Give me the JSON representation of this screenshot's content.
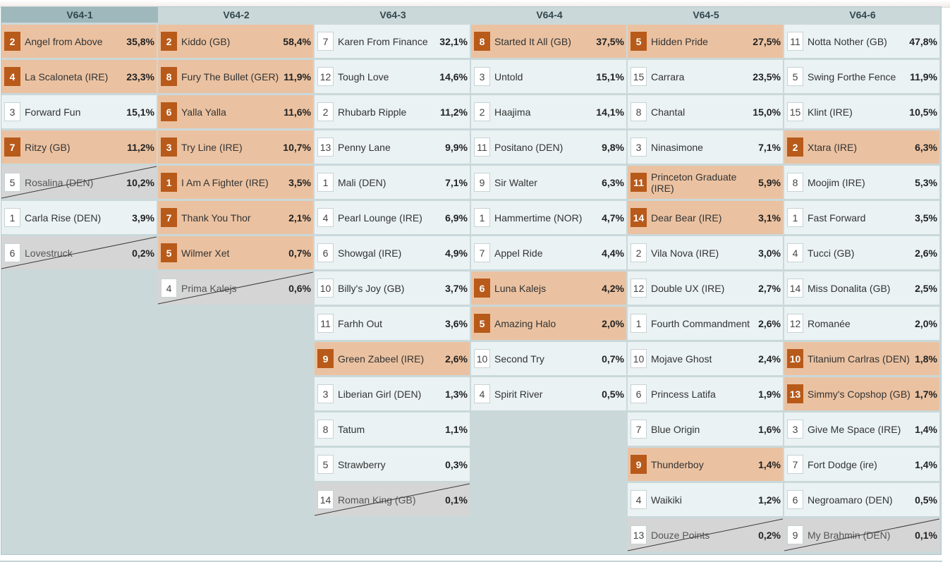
{
  "columns": [
    {
      "title": "V64-1",
      "rows": [
        {
          "num": "2",
          "name": "Angel from Above",
          "pct": "35,8%",
          "kind": "c"
        },
        {
          "num": "4",
          "name": "La Scaloneta (IRE)",
          "pct": "23,3%",
          "kind": "c"
        },
        {
          "num": "3",
          "name": "Forward Fun",
          "pct": "15,1%",
          "kind": "w"
        },
        {
          "num": "7",
          "name": "Ritzy (GB)",
          "pct": "11,2%",
          "kind": "c"
        },
        {
          "num": "5",
          "name": "Rosalina (DEN)",
          "pct": "10,2%",
          "kind": "s"
        },
        {
          "num": "1",
          "name": "Carla Rise (DEN)",
          "pct": "3,9%",
          "kind": "w"
        },
        {
          "num": "6",
          "name": "Lovestruck",
          "pct": "0,2%",
          "kind": "s"
        }
      ]
    },
    {
      "title": "V64-2",
      "rows": [
        {
          "num": "2",
          "name": "Kiddo (GB)",
          "pct": "58,4%",
          "kind": "c"
        },
        {
          "num": "8",
          "name": "Fury The Bullet (GER)",
          "pct": "11,9%",
          "kind": "c"
        },
        {
          "num": "6",
          "name": "Yalla Yalla",
          "pct": "11,6%",
          "kind": "c"
        },
        {
          "num": "3",
          "name": "Try Line (IRE)",
          "pct": "10,7%",
          "kind": "c"
        },
        {
          "num": "1",
          "name": "I Am A Fighter (IRE)",
          "pct": "3,5%",
          "kind": "c"
        },
        {
          "num": "7",
          "name": "Thank You Thor",
          "pct": "2,1%",
          "kind": "c"
        },
        {
          "num": "5",
          "name": "Wilmer Xet",
          "pct": "0,7%",
          "kind": "c"
        },
        {
          "num": "4",
          "name": "Prima Kalejs",
          "pct": "0,6%",
          "kind": "s"
        }
      ]
    },
    {
      "title": "V64-3",
      "rows": [
        {
          "num": "7",
          "name": "Karen From Finance",
          "pct": "32,1%",
          "kind": "w"
        },
        {
          "num": "12",
          "name": "Tough Love",
          "pct": "14,6%",
          "kind": "w"
        },
        {
          "num": "2",
          "name": "Rhubarb Ripple",
          "pct": "11,2%",
          "kind": "w"
        },
        {
          "num": "13",
          "name": "Penny Lane",
          "pct": "9,9%",
          "kind": "w"
        },
        {
          "num": "1",
          "name": "Mali (DEN)",
          "pct": "7,1%",
          "kind": "w"
        },
        {
          "num": "4",
          "name": "Pearl Lounge (IRE)",
          "pct": "6,9%",
          "kind": "w"
        },
        {
          "num": "6",
          "name": "Showgal (IRE)",
          "pct": "4,9%",
          "kind": "w"
        },
        {
          "num": "10",
          "name": "Billy's Joy (GB)",
          "pct": "3,7%",
          "kind": "w"
        },
        {
          "num": "11",
          "name": "Farhh Out",
          "pct": "3,6%",
          "kind": "w"
        },
        {
          "num": "9",
          "name": "Green Zabeel (IRE)",
          "pct": "2,6%",
          "kind": "c"
        },
        {
          "num": "3",
          "name": "Liberian Girl (DEN)",
          "pct": "1,3%",
          "kind": "w"
        },
        {
          "num": "8",
          "name": "Tatum",
          "pct": "1,1%",
          "kind": "w"
        },
        {
          "num": "5",
          "name": "Strawberry",
          "pct": "0,3%",
          "kind": "w"
        },
        {
          "num": "14",
          "name": "Roman King (GB)",
          "pct": "0,1%",
          "kind": "s"
        }
      ]
    },
    {
      "title": "V64-4",
      "rows": [
        {
          "num": "8",
          "name": "Started It All (GB)",
          "pct": "37,5%",
          "kind": "c"
        },
        {
          "num": "3",
          "name": "Untold",
          "pct": "15,1%",
          "kind": "w"
        },
        {
          "num": "2",
          "name": "Haajima",
          "pct": "14,1%",
          "kind": "w"
        },
        {
          "num": "11",
          "name": "Positano (DEN)",
          "pct": "9,8%",
          "kind": "w"
        },
        {
          "num": "9",
          "name": "Sir Walter",
          "pct": "6,3%",
          "kind": "w"
        },
        {
          "num": "1",
          "name": "Hammertime (NOR)",
          "pct": "4,7%",
          "kind": "w"
        },
        {
          "num": "7",
          "name": "Appel Ride",
          "pct": "4,4%",
          "kind": "w"
        },
        {
          "num": "6",
          "name": "Luna Kalejs",
          "pct": "4,2%",
          "kind": "c"
        },
        {
          "num": "5",
          "name": "Amazing Halo",
          "pct": "2,0%",
          "kind": "c"
        },
        {
          "num": "10",
          "name": "Second Try",
          "pct": "0,7%",
          "kind": "w"
        },
        {
          "num": "4",
          "name": "Spirit River",
          "pct": "0,5%",
          "kind": "w"
        }
      ]
    },
    {
      "title": "V64-5",
      "rows": [
        {
          "num": "5",
          "name": "Hidden Pride",
          "pct": "27,5%",
          "kind": "c"
        },
        {
          "num": "15",
          "name": "Carrara",
          "pct": "23,5%",
          "kind": "w"
        },
        {
          "num": "8",
          "name": "Chantal",
          "pct": "15,0%",
          "kind": "w"
        },
        {
          "num": "3",
          "name": "Ninasimone",
          "pct": "7,1%",
          "kind": "w"
        },
        {
          "num": "11",
          "name": "Princeton Graduate (IRE)",
          "pct": "5,9%",
          "kind": "c"
        },
        {
          "num": "14",
          "name": "Dear Bear (IRE)",
          "pct": "3,1%",
          "kind": "c"
        },
        {
          "num": "2",
          "name": "Vila Nova (IRE)",
          "pct": "3,0%",
          "kind": "w"
        },
        {
          "num": "12",
          "name": "Double UX (IRE)",
          "pct": "2,7%",
          "kind": "w"
        },
        {
          "num": "1",
          "name": "Fourth Commandment",
          "pct": "2,6%",
          "kind": "w"
        },
        {
          "num": "10",
          "name": "Mojave Ghost",
          "pct": "2,4%",
          "kind": "w"
        },
        {
          "num": "6",
          "name": "Princess Latifa",
          "pct": "1,9%",
          "kind": "w"
        },
        {
          "num": "7",
          "name": "Blue Origin",
          "pct": "1,6%",
          "kind": "w"
        },
        {
          "num": "9",
          "name": "Thunderboy",
          "pct": "1,4%",
          "kind": "c"
        },
        {
          "num": "4",
          "name": "Waikiki",
          "pct": "1,2%",
          "kind": "w"
        },
        {
          "num": "13",
          "name": "Douze Points",
          "pct": "0,2%",
          "kind": "s"
        }
      ]
    },
    {
      "title": "V64-6",
      "rows": [
        {
          "num": "11",
          "name": "Notta Nother (GB)",
          "pct": "47,8%",
          "kind": "w"
        },
        {
          "num": "5",
          "name": "Swing Forthe Fence",
          "pct": "11,9%",
          "kind": "w"
        },
        {
          "num": "15",
          "name": "Klint (IRE)",
          "pct": "10,5%",
          "kind": "w"
        },
        {
          "num": "2",
          "name": "Xtara (IRE)",
          "pct": "6,3%",
          "kind": "c"
        },
        {
          "num": "8",
          "name": "Moojim (IRE)",
          "pct": "5,3%",
          "kind": "w"
        },
        {
          "num": "1",
          "name": "Fast Forward",
          "pct": "3,5%",
          "kind": "w"
        },
        {
          "num": "4",
          "name": "Tucci (GB)",
          "pct": "2,6%",
          "kind": "w"
        },
        {
          "num": "14",
          "name": "Miss Donalita (GB)",
          "pct": "2,5%",
          "kind": "w"
        },
        {
          "num": "12",
          "name": "Romanée",
          "pct": "2,0%",
          "kind": "w"
        },
        {
          "num": "10",
          "name": "Titanium Carlras (DEN)",
          "pct": "1,8%",
          "kind": "c"
        },
        {
          "num": "13",
          "name": "Simmy's Copshop (GB)",
          "pct": "1,7%",
          "kind": "c"
        },
        {
          "num": "3",
          "name": "Give Me Space (IRE)",
          "pct": "1,4%",
          "kind": "w"
        },
        {
          "num": "7",
          "name": "Fort Dodge (ire)",
          "pct": "1,4%",
          "kind": "w"
        },
        {
          "num": "6",
          "name": "Negroamaro (DEN)",
          "pct": "0,5%",
          "kind": "w"
        },
        {
          "num": "9",
          "name": "My Brahmin (DEN)",
          "pct": "0,1%",
          "kind": "s"
        }
      ]
    }
  ],
  "colors": {
    "selected": "#ebc2a1",
    "selected_number": "#b85a1a",
    "unselected": "#eaf2f3",
    "scratched": "#d5d5d5",
    "board": "#cad8da"
  }
}
